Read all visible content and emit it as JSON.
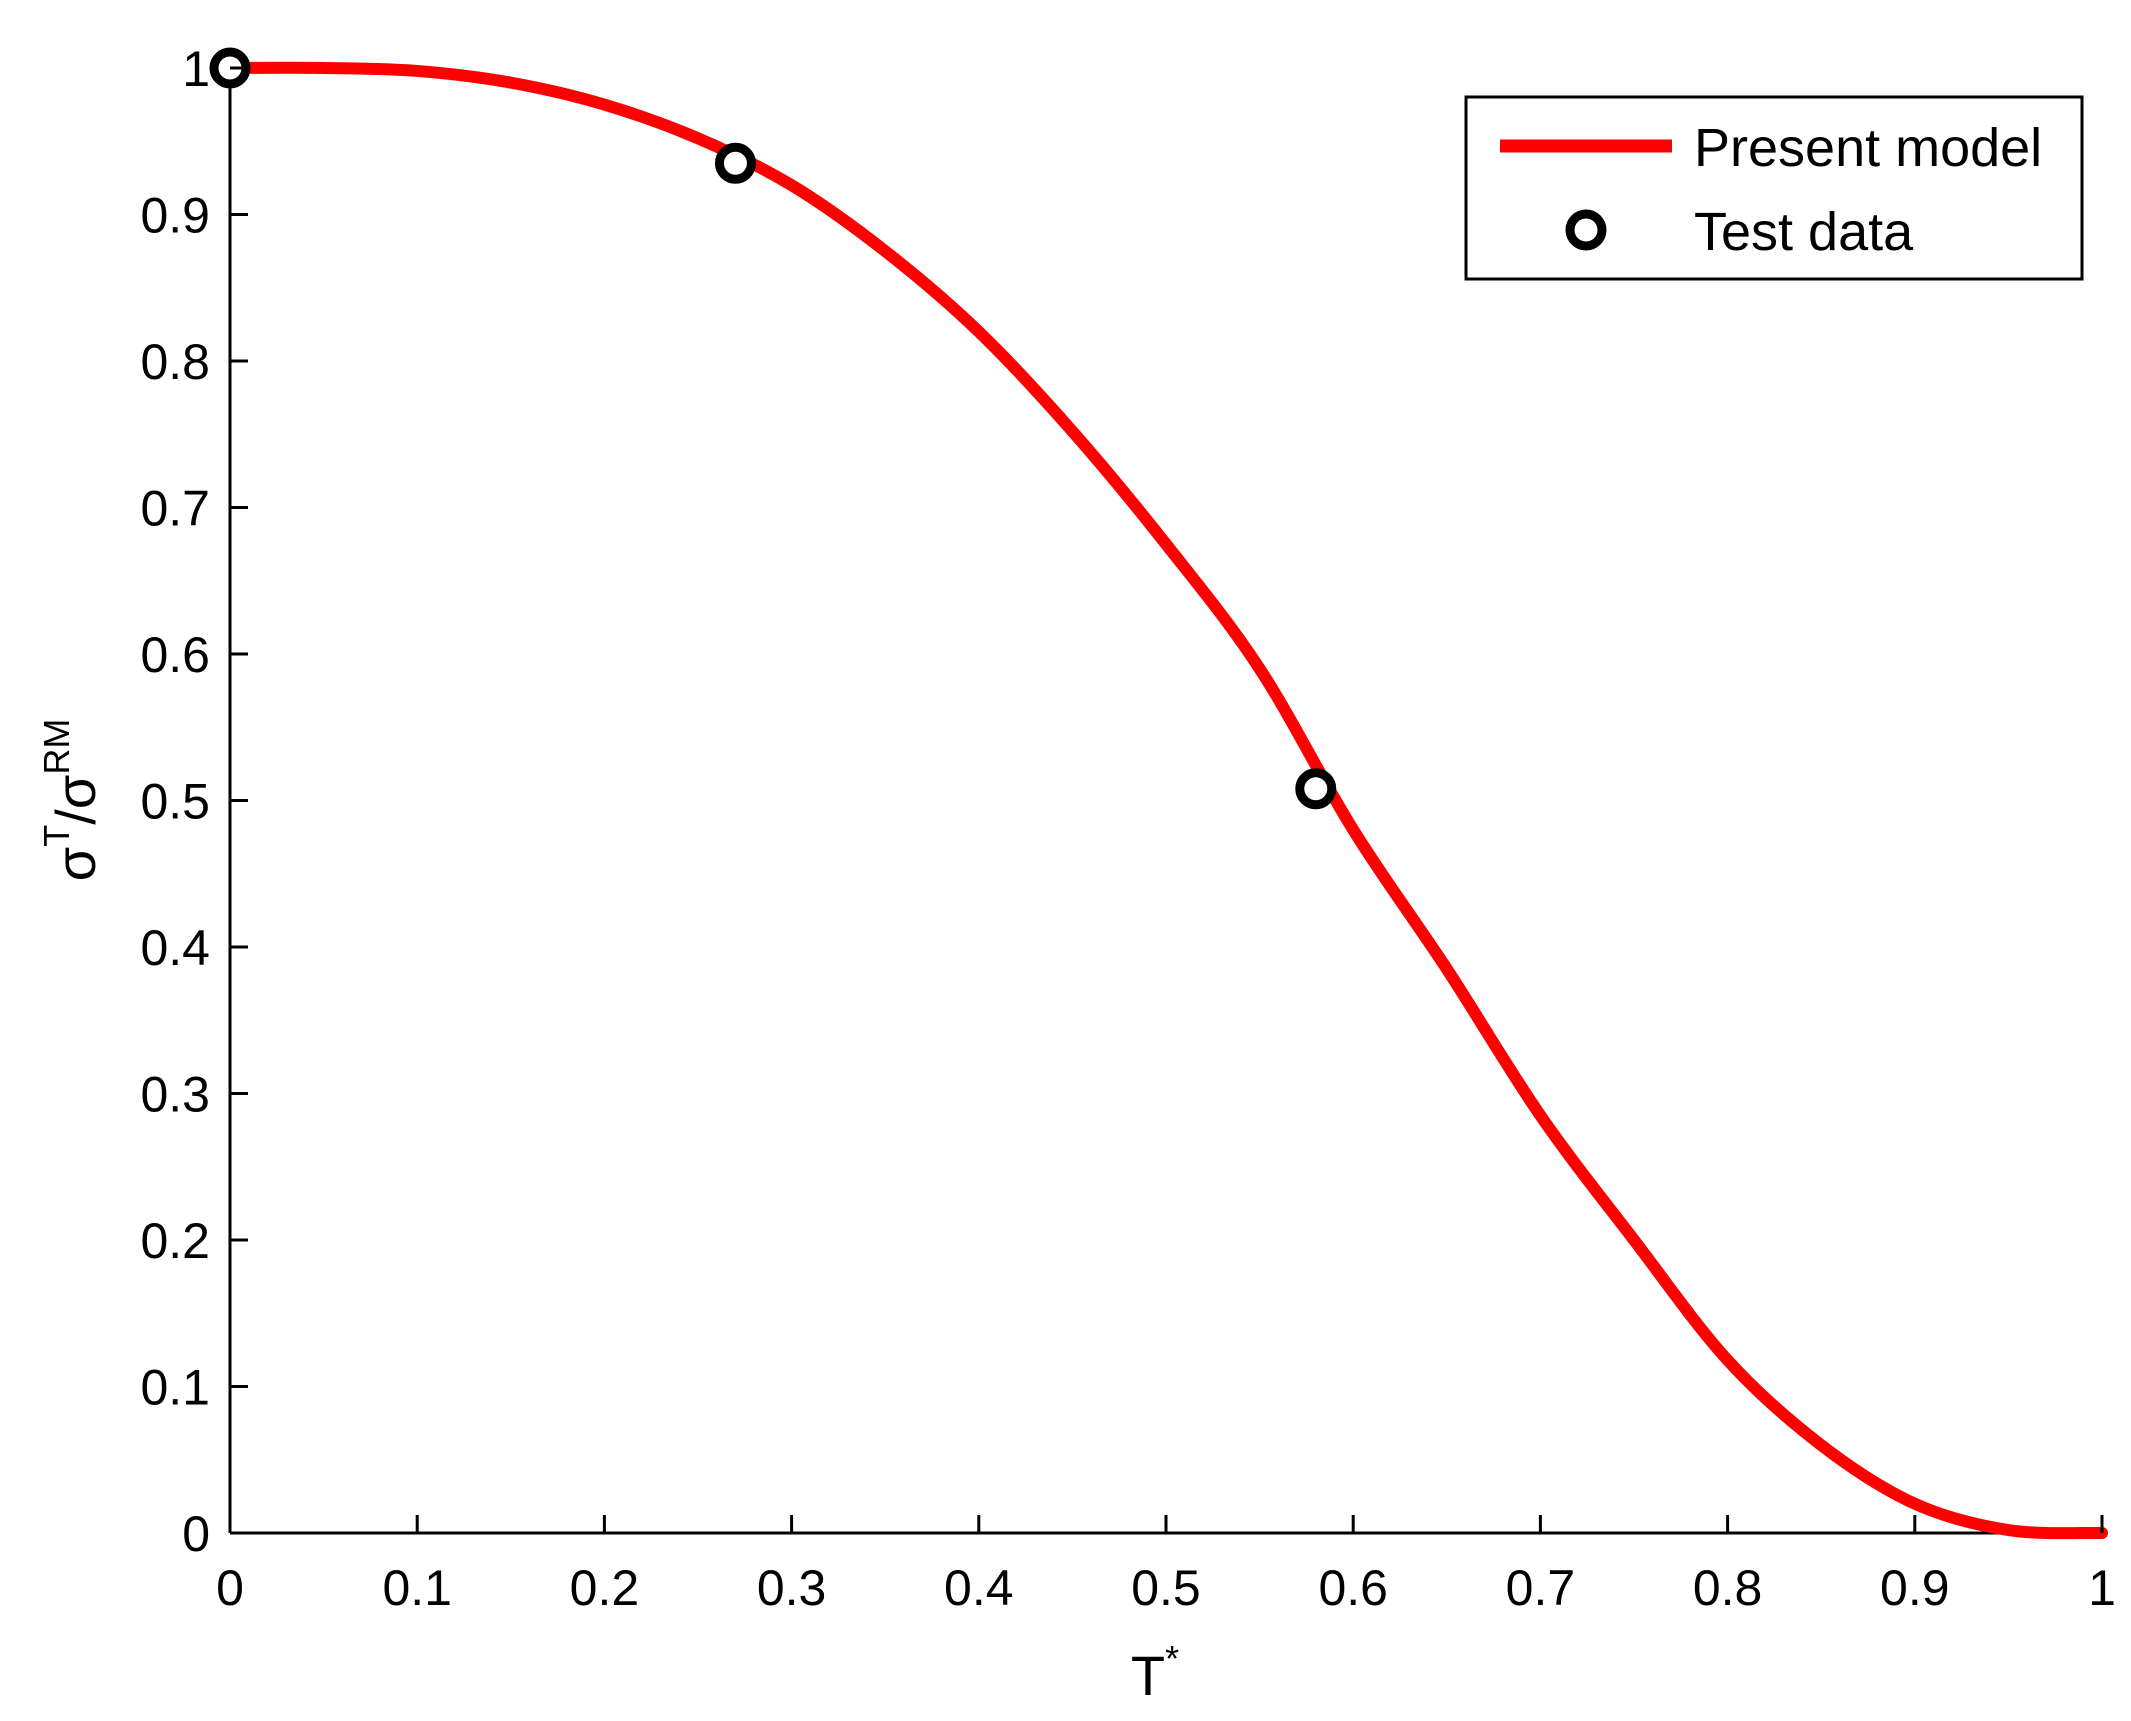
{
  "chart_data": {
    "type": "line",
    "title": "",
    "xlabel": {
      "base": "T",
      "superscript": "*"
    },
    "ylabel": {
      "part1": "σ",
      "sup1": "T",
      "slash": "/",
      "part2": "σ",
      "sup2": "RM"
    },
    "xlim": [
      0,
      1
    ],
    "ylim": [
      0,
      1
    ],
    "xticks": [
      "0",
      "0.1",
      "0.2",
      "0.3",
      "0.4",
      "0.5",
      "0.6",
      "0.7",
      "0.8",
      "0.9",
      "1"
    ],
    "yticks": [
      "0",
      "0.1",
      "0.2",
      "0.3",
      "0.4",
      "0.5",
      "0.6",
      "0.7",
      "0.8",
      "0.9",
      "1"
    ],
    "grid": false,
    "legend_position": "top-right",
    "series": [
      {
        "name": "Present model",
        "kind": "line",
        "color": "#ff0000",
        "x": [
          0,
          0.05,
          0.1,
          0.15,
          0.2,
          0.25,
          0.3,
          0.35,
          0.4,
          0.45,
          0.5,
          0.55,
          0.6,
          0.65,
          0.7,
          0.75,
          0.8,
          0.85,
          0.9,
          0.95,
          1.0
        ],
        "y": [
          1.0,
          1.0,
          0.998,
          0.99,
          0.975,
          0.952,
          0.92,
          0.875,
          0.82,
          0.752,
          0.675,
          0.59,
          0.48,
          0.385,
          0.285,
          0.2,
          0.118,
          0.06,
          0.02,
          0.002,
          0.0
        ]
      },
      {
        "name": "Test data",
        "kind": "markers",
        "marker": "circle",
        "color": "#000000",
        "x": [
          0,
          0.27,
          0.58
        ],
        "y": [
          1.0,
          0.935,
          0.508
        ]
      }
    ]
  }
}
